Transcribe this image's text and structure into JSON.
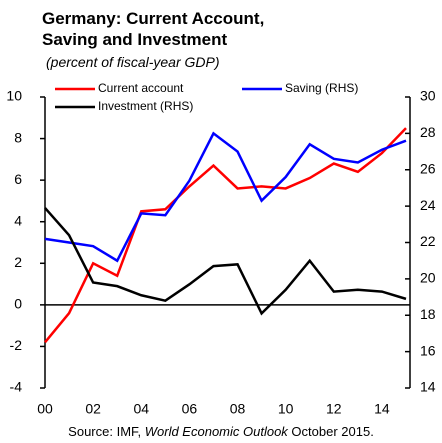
{
  "chart_data": {
    "type": "line",
    "title": "Germany: Current Account, Saving and Investment",
    "subtitle": "(percent of  fiscal-year GDP)",
    "source": [
      "Source: IMF, ",
      "World Economic Outlook",
      " October 2015."
    ],
    "x": [
      2000,
      2001,
      2002,
      2003,
      2004,
      2005,
      2006,
      2007,
      2008,
      2009,
      2010,
      2011,
      2012,
      2013,
      2014,
      2015
    ],
    "xlim": [
      2000,
      2015
    ],
    "xticks": [
      {
        "value": 2000,
        "label": "00"
      },
      {
        "value": 2002,
        "label": "02"
      },
      {
        "value": 2004,
        "label": "04"
      },
      {
        "value": 2006,
        "label": "06"
      },
      {
        "value": 2008,
        "label": "08"
      },
      {
        "value": 2010,
        "label": "10"
      },
      {
        "value": 2012,
        "label": "12"
      },
      {
        "value": 2014,
        "label": "14"
      }
    ],
    "ylim": [
      -4,
      10
    ],
    "yticks": [
      -4,
      -2,
      0,
      2,
      4,
      6,
      8,
      10
    ],
    "y2lim": [
      14,
      30
    ],
    "y2ticks": [
      14,
      16,
      18,
      20,
      22,
      24,
      26,
      28,
      30
    ],
    "legend": "upper left",
    "series": [
      {
        "name": "Current account",
        "color": "#ff0000",
        "values": [
          -1.8,
          -0.4,
          2.0,
          1.4,
          4.5,
          4.6,
          5.7,
          6.7,
          5.6,
          5.7,
          5.6,
          6.1,
          6.8,
          6.4,
          7.3,
          8.5
        ]
      },
      {
        "name": "Saving (RHS)",
        "color": "#0000ff",
        "axis": "y2",
        "values": [
          22.2,
          22.0,
          21.8,
          21.0,
          23.6,
          23.5,
          25.4,
          28.0,
          27.0,
          24.3,
          25.6,
          27.4,
          26.6,
          26.4,
          27.1,
          27.6
        ]
      },
      {
        "name": "Investment (RHS)",
        "color": "#000000",
        "axis": "y2",
        "values": [
          23.9,
          22.4,
          19.8,
          19.6,
          19.1,
          18.8,
          19.7,
          20.7,
          20.8,
          18.1,
          19.4,
          21.0,
          19.3,
          19.4,
          19.3,
          18.9
        ]
      }
    ]
  }
}
